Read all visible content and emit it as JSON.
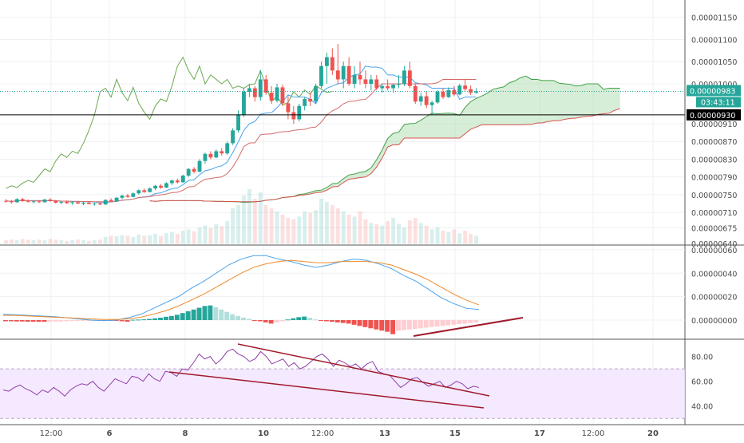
{
  "colors": {
    "up": "#26a69a",
    "down": "#ef5350",
    "grid": "#eef0f3",
    "axis_text": "#4a4a4a",
    "cloud_green": "#a5d6a7",
    "cloud_red": "#f4b6b6",
    "chikou": "#6aa84f",
    "tenkan": "#4aa3ee",
    "kijun": "#d36b6b",
    "macd": "#4aa3ee",
    "signal": "#f08a2c",
    "rsi": "#8e3ea6",
    "rsi_band": "#f3e3ff",
    "trendline": "#a01a2c",
    "price_label_bg": "#26a69a",
    "black_line": "#000000"
  },
  "price_axis_labels": [
    "0.00001150",
    "0.00001100",
    "0.00001050",
    "0.00001000",
    "0.00000910",
    "0.00000870",
    "0.00000830",
    "0.00000790",
    "0.00000750",
    "0.00000710",
    "0.00000675",
    "0.00000640"
  ],
  "price_tag": {
    "price": "0.00000983",
    "countdown": "03:43:11"
  },
  "line_tag": {
    "price": "0.00000930"
  },
  "macd_axis_labels": [
    "0.00000060",
    "0.00000040",
    "0.00000020",
    "0.00000000"
  ],
  "rsi_axis_labels": [
    "80.00",
    "60.00",
    "40.00"
  ],
  "time_labels": [
    "12:00",
    "6",
    "8",
    "10",
    "12:00",
    "13",
    "15",
    "17",
    "12:00",
    "20"
  ],
  "chart_data": [
    {
      "panel": "price",
      "type": "candlestick",
      "series_overlays": [
        "ichimoku cloud",
        "tenkan",
        "kijun",
        "chikou",
        "volume"
      ],
      "horizontal_line": 9.3e-06,
      "last_price": 9.83e-06,
      "values_note": "",
      "candles": [
        [
          7.36e-06,
          7.4e-06,
          7.32e-06,
          7.35e-06
        ],
        [
          7.35e-06,
          7.38e-06,
          7.3e-06,
          7.33e-06
        ],
        [
          7.33e-06,
          7.42e-06,
          7.31e-06,
          7.4e-06
        ],
        [
          7.4e-06,
          7.43e-06,
          7.34e-06,
          7.36e-06
        ],
        [
          7.36e-06,
          7.39e-06,
          7.32e-06,
          7.34e-06
        ],
        [
          7.34e-06,
          7.37e-06,
          7.3e-06,
          7.35e-06
        ],
        [
          7.35e-06,
          7.38e-06,
          7.31e-06,
          7.33e-06
        ],
        [
          7.33e-06,
          7.41e-06,
          7.32e-06,
          7.39e-06
        ],
        [
          7.39e-06,
          7.42e-06,
          7.34e-06,
          7.36e-06
        ],
        [
          7.36e-06,
          7.38e-06,
          7.3e-06,
          7.32e-06
        ],
        [
          7.32e-06,
          7.36e-06,
          7.28e-06,
          7.34e-06
        ],
        [
          7.34e-06,
          7.37e-06,
          7.29e-06,
          7.31e-06
        ],
        [
          7.31e-06,
          7.35e-06,
          7.27e-06,
          7.33e-06
        ],
        [
          7.33e-06,
          7.36e-06,
          7.29e-06,
          7.3e-06
        ],
        [
          7.3e-06,
          7.34e-06,
          7.26e-06,
          7.32e-06
        ],
        [
          7.32e-06,
          7.35e-06,
          7.28e-06,
          7.29e-06
        ],
        [
          7.29e-06,
          7.32e-06,
          7.25e-06,
          7.3e-06
        ],
        [
          7.3e-06,
          7.34e-06,
          7.26e-06,
          7.28e-06
        ],
        [
          7.28e-06,
          7.4e-06,
          7.27e-06,
          7.38e-06
        ],
        [
          7.38e-06,
          7.42e-06,
          7.33e-06,
          7.35e-06
        ],
        [
          7.35e-06,
          7.45e-06,
          7.34e-06,
          7.43e-06
        ],
        [
          7.43e-06,
          7.5e-06,
          7.4e-06,
          7.48e-06
        ],
        [
          7.48e-06,
          7.52e-06,
          7.43e-06,
          7.45e-06
        ],
        [
          7.45e-06,
          7.55e-06,
          7.44e-06,
          7.53e-06
        ],
        [
          7.53e-06,
          7.62e-06,
          7.5e-06,
          7.6e-06
        ],
        [
          7.6e-06,
          7.64e-06,
          7.54e-06,
          7.56e-06
        ],
        [
          7.56e-06,
          7.66e-06,
          7.55e-06,
          7.64e-06
        ],
        [
          7.64e-06,
          7.72e-06,
          7.6e-06,
          7.7e-06
        ],
        [
          7.7e-06,
          7.74e-06,
          7.63e-06,
          7.66e-06
        ],
        [
          7.66e-06,
          7.78e-06,
          7.65e-06,
          7.76e-06
        ],
        [
          7.76e-06,
          7.84e-06,
          7.72e-06,
          7.82e-06
        ],
        [
          7.82e-06,
          7.86e-06,
          7.75e-06,
          7.78e-06
        ],
        [
          7.78e-06,
          7.95e-06,
          7.77e-06,
          7.93e-06
        ],
        [
          7.93e-06,
          8.1e-06,
          7.9e-06,
          8.08e-06
        ],
        [
          8.08e-06,
          8.12e-06,
          7.98e-06,
          8.02e-06
        ],
        [
          8.02e-06,
          8.3e-06,
          8e-06,
          8.26e-06
        ],
        [
          8.26e-06,
          8.45e-06,
          8.2e-06,
          8.42e-06
        ],
        [
          8.42e-06,
          8.48e-06,
          8.3e-06,
          8.34e-06
        ],
        [
          8.34e-06,
          8.52e-06,
          8.32e-06,
          8.48e-06
        ],
        [
          8.48e-06,
          8.55e-06,
          8.38e-06,
          8.43e-06
        ],
        [
          8.43e-06,
          8.7e-06,
          8.4e-06,
          8.66e-06
        ],
        [
          8.66e-06,
          9e-06,
          8.62e-06,
          8.95e-06
        ],
        [
          8.95e-06,
          9.4e-06,
          8.9e-06,
          9.3e-06
        ],
        [
          9.3e-06,
          9.9e-06,
          9.25e-06,
          9.82e-06
        ],
        [
          9.82e-06,
          1e-05,
          9.7e-06,
          9.9e-06
        ],
        [
          9.9e-06,
          9.95e-06,
          9.6e-06,
          9.7e-06
        ],
        [
          9.7e-06,
          1.03e-05,
          9.62e-06,
          1.01e-05
        ],
        [
          1.01e-05,
          1.02e-05,
          9.75e-06,
          9.8e-06
        ],
        [
          9.8e-06,
          9.95e-06,
          9.55e-06,
          9.62e-06
        ],
        [
          9.62e-06,
          1e-05,
          9.58e-06,
          9.92e-06
        ],
        [
          9.92e-06,
          9.98e-06,
          9.5e-06,
          9.56e-06
        ],
        [
          9.56e-06,
          9.72e-06,
          9.2e-06,
          9.36e-06
        ],
        [
          9.36e-06,
          9.5e-06,
          9.1e-06,
          9.2e-06
        ],
        [
          9.2e-06,
          9.55e-06,
          9.15e-06,
          9.5e-06
        ],
        [
          9.5e-06,
          9.7e-06,
          9.4e-06,
          9.66e-06
        ],
        [
          9.66e-06,
          9.8e-06,
          9.5e-06,
          9.6e-06
        ],
        [
          9.6e-06,
          1e-05,
          9.55e-06,
          9.95e-06
        ],
        [
          9.95e-06,
          1.05e-05,
          9.9e-06,
          1.04e-05
        ],
        [
          1.04e-05,
          1.07e-05,
          1e-05,
          1.06e-05
        ],
        [
          1.06e-05,
          1.08e-05,
          1.02e-05,
          1.03e-05
        ],
        [
          1.03e-05,
          1.09e-05,
          1e-05,
          1.01e-05
        ],
        [
          1.01e-05,
          1.05e-05,
          9.9e-06,
          1.04e-05
        ],
        [
          1.04e-05,
          1.06e-05,
          9.95e-06,
          1e-05
        ],
        [
          1e-05,
          1.04e-05,
          9.9e-06,
          1.02e-05
        ],
        [
          1.02e-05,
          1.05e-05,
          9.98e-06,
          1.01e-05
        ],
        [
          1.01e-05,
          1.03e-05,
          9.9e-06,
          1e-05
        ],
        [
          1e-05,
          1.02e-05,
          9.85e-06,
          1.01e-05
        ],
        [
          1.01e-05,
          1.02e-05,
          9.86e-06,
          9.9e-06
        ],
        [
          9.9e-06,
          1e-05,
          9.8e-06,
          9.95e-06
        ],
        [
          9.95e-06,
          1.01e-05,
          9.85e-06,
          9.9e-06
        ],
        [
          9.9e-06,
          1e-05,
          9.8e-06,
          9.98e-06
        ],
        [
          9.98e-06,
          1.02e-05,
          9.9e-06,
          1e-05
        ],
        [
          1e-05,
          1.04e-05,
          9.95e-06,
          1.03e-05
        ],
        [
          1.03e-05,
          1.05e-05,
          9.9e-06,
          9.95e-06
        ],
        [
          9.95e-06,
          1e-05,
          9.55e-06,
          9.6e-06
        ],
        [
          9.6e-06,
          9.8e-06,
          9.5e-06,
          9.72e-06
        ],
        [
          9.72e-06,
          9.82e-06,
          9.45e-06,
          9.52e-06
        ],
        [
          9.52e-06,
          9.62e-06,
          9.3e-06,
          9.58e-06
        ],
        [
          9.58e-06,
          9.85e-06,
          9.55e-06,
          9.82e-06
        ],
        [
          9.82e-06,
          9.9e-06,
          9.66e-06,
          9.7e-06
        ],
        [
          9.7e-06,
          9.92e-06,
          9.68e-06,
          9.86e-06
        ],
        [
          9.86e-06,
          9.95e-06,
          9.72e-06,
          9.76e-06
        ],
        [
          9.76e-06,
          1e-05,
          9.74e-06,
          9.96e-06
        ],
        [
          9.96e-06,
          1.01e-05,
          9.82e-06,
          9.88e-06
        ],
        [
          9.88e-06,
          9.96e-06,
          9.75e-06,
          9.8e-06
        ],
        [
          9.8e-06,
          9.9e-06,
          9.78e-06,
          9.83e-06
        ]
      ],
      "volume": [
        0.05,
        0.06,
        0.05,
        0.07,
        0.06,
        0.05,
        0.06,
        0.05,
        0.07,
        0.06,
        0.05,
        0.04,
        0.05,
        0.06,
        0.05,
        0.04,
        0.05,
        0.06,
        0.1,
        0.12,
        0.11,
        0.13,
        0.12,
        0.1,
        0.14,
        0.12,
        0.13,
        0.15,
        0.12,
        0.16,
        0.18,
        0.15,
        0.2,
        0.22,
        0.19,
        0.25,
        0.28,
        0.24,
        0.3,
        0.27,
        0.35,
        0.55,
        0.6,
        0.75,
        0.85,
        0.7,
        0.8,
        0.6,
        0.55,
        0.5,
        0.45,
        0.4,
        0.38,
        0.42,
        0.5,
        0.48,
        0.52,
        0.7,
        0.65,
        0.6,
        0.55,
        0.5,
        0.45,
        0.42,
        0.5,
        0.38,
        0.32,
        0.3,
        0.28,
        0.35,
        0.4,
        0.3,
        0.25,
        0.36,
        0.4,
        0.32,
        0.28,
        0.22,
        0.25,
        0.2,
        0.18,
        0.22,
        0.16,
        0.2,
        0.15,
        0.12
      ]
    },
    {
      "panel": "macd",
      "type": "line",
      "series": [
        {
          "values": [
            0.05,
            0.045,
            0.04,
            0.035,
            0.03,
            0.02,
            0.01,
            0.0,
            -0.005,
            0.0,
            0.02,
            0.05,
            0.1,
            0.15,
            0.2,
            0.27,
            0.33,
            0.4,
            0.47,
            0.52,
            0.55,
            0.55,
            0.52,
            0.5,
            0.47,
            0.45,
            0.47,
            0.5,
            0.52,
            0.51,
            0.48,
            0.44,
            0.38,
            0.33,
            0.26,
            0.19,
            0.14,
            0.1,
            0.09
          ]
        },
        {
          "values": [
            0.04,
            0.04,
            0.035,
            0.03,
            0.025,
            0.02,
            0.015,
            0.01,
            0.005,
            0.005,
            0.01,
            0.025,
            0.05,
            0.08,
            0.12,
            0.17,
            0.22,
            0.28,
            0.34,
            0.4,
            0.45,
            0.48,
            0.5,
            0.51,
            0.5,
            0.49,
            0.49,
            0.5,
            0.5,
            0.5,
            0.49,
            0.47,
            0.43,
            0.39,
            0.34,
            0.28,
            0.22,
            0.17,
            0.13
          ]
        }
      ],
      "histogram": [
        -0.01,
        -0.01,
        -0.012,
        -0.012,
        -0.014,
        -0.014,
        -0.015,
        -0.015,
        -0.014,
        -0.013,
        -0.012,
        -0.01,
        -0.008,
        -0.007,
        -0.005,
        -0.004,
        -0.003,
        -0.003,
        -0.004,
        -0.004,
        -0.006,
        -0.01,
        -0.014,
        0.003,
        0.004,
        0.006,
        0.01,
        0.015,
        0.02,
        0.028,
        0.035,
        0.045,
        0.06,
        0.075,
        0.09,
        0.105,
        0.12,
        0.125,
        0.11,
        0.09,
        0.07,
        0.05,
        0.035,
        0.02,
        0.01,
        -0.005,
        -0.01,
        -0.02,
        -0.03,
        -0.02,
        -0.01,
        0.005,
        0.015,
        0.025,
        0.03,
        0.02,
        0.005,
        -0.005,
        -0.01,
        -0.015,
        -0.02,
        -0.025,
        -0.03,
        -0.04,
        -0.05,
        -0.06,
        -0.07,
        -0.08,
        -0.09,
        -0.1,
        -0.12,
        -0.09,
        -0.085,
        -0.08,
        -0.075,
        -0.07,
        -0.065,
        -0.06,
        -0.055,
        -0.05,
        -0.045,
        -0.04,
        -0.035,
        -0.03,
        -0.025,
        -0.02
      ]
    },
    {
      "panel": "rsi",
      "type": "line",
      "ylim": [
        30,
        90
      ],
      "band": [
        30,
        70
      ],
      "series": [
        {
          "values": [
            53,
            52,
            55,
            57,
            54,
            52,
            49,
            53,
            51,
            55,
            52,
            48,
            53,
            56,
            58,
            57,
            60,
            55,
            52,
            57,
            62,
            60,
            58,
            64,
            63,
            60,
            66,
            62,
            60,
            68,
            67,
            64,
            70,
            69,
            75,
            82,
            78,
            80,
            74,
            78,
            84,
            86,
            82,
            80,
            76,
            78,
            84,
            80,
            74,
            76,
            78,
            72,
            75,
            70,
            72,
            76,
            80,
            82,
            78,
            72,
            77,
            75,
            72,
            74,
            70,
            74,
            76,
            68,
            66,
            65,
            60,
            55,
            58,
            62,
            63,
            59,
            56,
            58,
            60,
            55,
            57,
            60,
            58,
            54,
            56,
            55
          ]
        }
      ]
    }
  ]
}
